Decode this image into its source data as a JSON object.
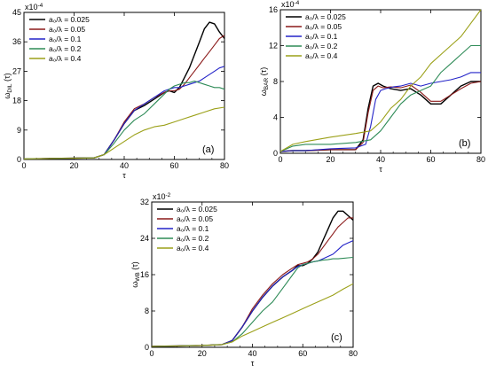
{
  "chart_data": [
    {
      "type": "line",
      "panel_label": "(a)",
      "xlabel": "τ",
      "ylabel": "ω_DIL (τ)",
      "exponent": "x10^-4",
      "xlim": [
        0,
        80
      ],
      "ylim": [
        0,
        45
      ],
      "xticks": [
        0,
        20,
        40,
        60,
        80
      ],
      "yticks": [
        0,
        9,
        18,
        27,
        36,
        45
      ],
      "legend_position": "top-left",
      "series": [
        {
          "name": "a₀/λ = 0.025",
          "color": "#000000",
          "x": [
            0,
            10,
            20,
            28,
            32,
            36,
            40,
            44,
            48,
            52,
            56,
            58,
            60,
            62,
            64,
            66,
            68,
            70,
            72,
            74,
            76,
            78,
            80
          ],
          "y": [
            0.2,
            0.3,
            0.4,
            0.5,
            1.5,
            6,
            11,
            15,
            16.5,
            18.5,
            20.5,
            21,
            20.5,
            22,
            25,
            28,
            32,
            36,
            40,
            42,
            41.5,
            39,
            37
          ]
        },
        {
          "name": "a₀/λ = 0.05",
          "color": "#8B1A1A",
          "x": [
            0,
            10,
            20,
            28,
            32,
            36,
            40,
            44,
            48,
            52,
            56,
            58,
            60,
            62,
            64,
            66,
            68,
            70,
            72,
            74,
            76,
            78,
            80
          ],
          "y": [
            0.2,
            0.3,
            0.4,
            0.5,
            1.5,
            6,
            11.5,
            15.5,
            17,
            19,
            20.5,
            21,
            21,
            21.5,
            23,
            25,
            27,
            29,
            31,
            33,
            35,
            37,
            38
          ]
        },
        {
          "name": "a₀/λ = 0.1",
          "color": "#2323C8",
          "x": [
            0,
            10,
            20,
            28,
            32,
            36,
            40,
            44,
            48,
            52,
            56,
            58,
            60,
            62,
            64,
            66,
            68,
            70,
            72,
            74,
            76,
            78,
            80
          ],
          "y": [
            0.2,
            0.3,
            0.4,
            0.5,
            1.5,
            6,
            11,
            15,
            17,
            19,
            21,
            21.5,
            22,
            22,
            22.5,
            23,
            23.5,
            24,
            25,
            26,
            27,
            28,
            28.5
          ]
        },
        {
          "name": "a₀/λ = 0.2",
          "color": "#2E8B57",
          "x": [
            0,
            10,
            20,
            28,
            32,
            36,
            40,
            44,
            48,
            52,
            56,
            58,
            60,
            62,
            64,
            66,
            68,
            70,
            72,
            74,
            76,
            78,
            80
          ],
          "y": [
            0.2,
            0.3,
            0.4,
            0.5,
            1.5,
            5,
            9,
            12,
            14,
            17,
            20,
            21.5,
            22.5,
            23,
            23.5,
            23.5,
            24,
            23.5,
            23,
            22.5,
            22,
            22,
            21.5
          ]
        },
        {
          "name": "a₀/λ = 0.4",
          "color": "#9BA018",
          "x": [
            0,
            10,
            20,
            28,
            32,
            36,
            40,
            44,
            48,
            52,
            56,
            60,
            64,
            68,
            72,
            76,
            80
          ],
          "y": [
            0.2,
            0.3,
            0.4,
            0.5,
            1.5,
            3.5,
            5.5,
            7.5,
            9,
            10,
            10.5,
            11.5,
            12.5,
            13.5,
            14.5,
            15.5,
            16
          ]
        }
      ]
    },
    {
      "type": "line",
      "panel_label": "(b)",
      "xlabel": "τ",
      "ylabel": "ω_BAR (τ)",
      "exponent": "x10^-4",
      "xlim": [
        0,
        80
      ],
      "ylim": [
        0,
        16
      ],
      "xticks": [
        0,
        20,
        40,
        60,
        80
      ],
      "yticks": [
        0,
        4,
        8,
        12,
        16
      ],
      "legend_position": "top-left",
      "series": [
        {
          "name": "a₀/λ = 0.025",
          "color": "#000000",
          "x": [
            0,
            5,
            10,
            20,
            30,
            33,
            35,
            37,
            39,
            41,
            44,
            48,
            52,
            56,
            60,
            64,
            68,
            72,
            76,
            80
          ],
          "y": [
            0.2,
            0.3,
            0.3,
            0.4,
            0.4,
            1.5,
            5,
            7.5,
            7.8,
            7.5,
            7.2,
            7,
            7.2,
            6.5,
            5.5,
            5.5,
            6.5,
            7.5,
            8,
            8
          ]
        },
        {
          "name": "a₀/λ = 0.05",
          "color": "#8B1A1A",
          "x": [
            0,
            5,
            10,
            20,
            30,
            33,
            35,
            37,
            39,
            41,
            44,
            48,
            52,
            56,
            60,
            64,
            68,
            72,
            76,
            80
          ],
          "y": [
            0.2,
            0.3,
            0.3,
            0.4,
            0.4,
            1.2,
            4.5,
            7,
            7.5,
            7.3,
            7.4,
            7.3,
            7.6,
            6.8,
            5.8,
            5.8,
            6.5,
            7.2,
            7.8,
            8
          ]
        },
        {
          "name": "a₀/λ = 0.1",
          "color": "#2323C8",
          "x": [
            0,
            5,
            10,
            20,
            30,
            34,
            36,
            38,
            40,
            42,
            45,
            48,
            52,
            56,
            60,
            64,
            68,
            72,
            76,
            80
          ],
          "y": [
            0.2,
            0.3,
            0.3,
            0.5,
            0.6,
            1,
            3,
            6,
            7,
            7.2,
            7.4,
            7.5,
            7.8,
            7.5,
            7.8,
            8,
            8.2,
            8.5,
            9,
            9
          ]
        },
        {
          "name": "a₀/λ = 0.2",
          "color": "#2E8B57",
          "x": [
            0,
            5,
            10,
            20,
            30,
            36,
            40,
            44,
            48,
            52,
            56,
            60,
            64,
            68,
            72,
            76,
            80
          ],
          "y": [
            0.2,
            0.8,
            1,
            1,
            1.2,
            1.5,
            2.5,
            4,
            5.5,
            6.5,
            7,
            7.5,
            9,
            10,
            11,
            12,
            12
          ]
        },
        {
          "name": "a₀/λ = 0.4",
          "color": "#9BA018",
          "x": [
            0,
            5,
            10,
            20,
            30,
            36,
            40,
            44,
            48,
            52,
            56,
            60,
            64,
            68,
            72,
            76,
            80
          ],
          "y": [
            0.2,
            1,
            1.3,
            1.8,
            2.2,
            2.5,
            3.5,
            5,
            6,
            7.5,
            8.5,
            10,
            11,
            12,
            13,
            14.5,
            16
          ]
        }
      ]
    },
    {
      "type": "line",
      "panel_label": "(c)",
      "xlabel": "τ",
      "ylabel": "ω_WB (τ)",
      "exponent": "x10^-2",
      "xlim": [
        0,
        80
      ],
      "ylim": [
        0,
        32
      ],
      "xticks": [
        0,
        20,
        40,
        60,
        80
      ],
      "yticks": [
        0,
        8,
        16,
        24,
        32
      ],
      "legend_position": "top-left",
      "series": [
        {
          "name": "a₀/λ = 0.025",
          "color": "#000000",
          "x": [
            0,
            10,
            20,
            28,
            32,
            36,
            40,
            44,
            48,
            52,
            56,
            58,
            60,
            62,
            64,
            66,
            68,
            70,
            72,
            74,
            76,
            78,
            80
          ],
          "y": [
            0.2,
            0.3,
            0.4,
            0.6,
            1.5,
            4.5,
            8,
            11,
            13.5,
            15.5,
            17,
            18,
            18,
            18.5,
            19.5,
            21,
            23.5,
            26,
            28.5,
            30,
            30,
            29,
            28
          ]
        },
        {
          "name": "a₀/λ = 0.05",
          "color": "#8B1A1A",
          "x": [
            0,
            10,
            20,
            28,
            32,
            36,
            40,
            44,
            48,
            52,
            56,
            58,
            60,
            62,
            64,
            66,
            68,
            70,
            72,
            74,
            76,
            78,
            80
          ],
          "y": [
            0.2,
            0.3,
            0.4,
            0.6,
            1.5,
            4.5,
            8.5,
            11.5,
            14,
            16,
            17.5,
            18.2,
            18.5,
            18.8,
            19.5,
            20.5,
            22,
            23.5,
            25,
            26.5,
            27.5,
            28.5,
            28.5
          ]
        },
        {
          "name": "a₀/λ = 0.1",
          "color": "#2323C8",
          "x": [
            0,
            10,
            20,
            28,
            32,
            36,
            40,
            44,
            48,
            52,
            56,
            58,
            60,
            62,
            64,
            66,
            68,
            70,
            72,
            74,
            76,
            78,
            80
          ],
          "y": [
            0.2,
            0.3,
            0.4,
            0.6,
            1.5,
            4.5,
            8,
            11,
            13.5,
            15.5,
            17,
            17.8,
            18.2,
            18.5,
            18.8,
            19,
            19.5,
            20,
            20.5,
            21.5,
            22.5,
            23,
            23.5
          ]
        },
        {
          "name": "a₀/λ = 0.2",
          "color": "#2E8B57",
          "x": [
            0,
            10,
            20,
            28,
            32,
            36,
            40,
            44,
            48,
            52,
            56,
            58,
            60,
            62,
            64,
            66,
            68,
            70,
            72,
            74,
            76,
            78,
            80
          ],
          "y": [
            0.2,
            0.3,
            0.4,
            0.6,
            1.2,
            3,
            5.5,
            8,
            10,
            13,
            16,
            17.5,
            18.2,
            18.5,
            18.8,
            19,
            19.2,
            19.3,
            19.5,
            19.5,
            19.6,
            19.7,
            19.8
          ]
        },
        {
          "name": "a₀/λ = 0.4",
          "color": "#9BA018",
          "x": [
            0,
            10,
            20,
            28,
            32,
            36,
            40,
            44,
            48,
            52,
            56,
            60,
            64,
            68,
            72,
            76,
            80
          ],
          "y": [
            0.2,
            0.3,
            0.4,
            0.6,
            1.2,
            2.5,
            3.5,
            4.5,
            5.5,
            6.5,
            7.5,
            8.5,
            9.5,
            10.5,
            11.5,
            12.8,
            14
          ]
        }
      ]
    }
  ]
}
